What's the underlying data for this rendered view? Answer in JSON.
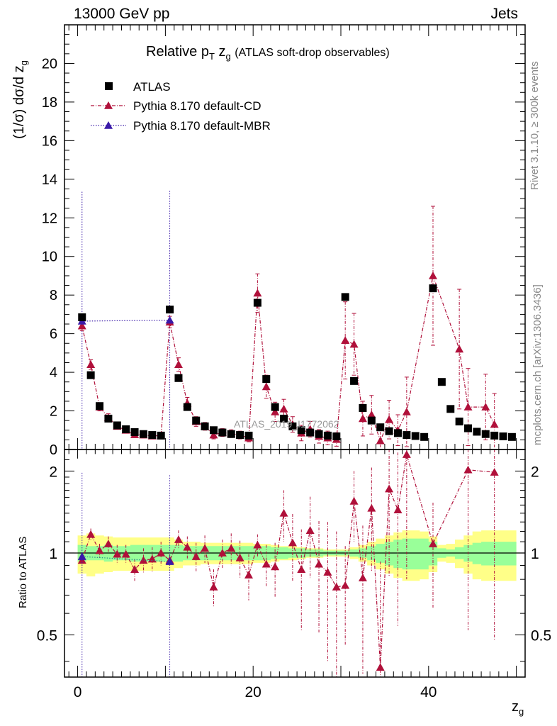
{
  "header": {
    "left": "13000 GeV pp",
    "right": "Jets"
  },
  "side": {
    "rivet": "Rivet 3.1.10, ≥ 300k events",
    "mcplots": "mcplots.cern.ch [arXiv:1306.3436]"
  },
  "colors": {
    "data": "#000000",
    "cd": "#b0103a",
    "mbr": "#3a1aa8",
    "band_inner": "#99ff99",
    "band_outer": "#ffff88"
  },
  "chart_data": [
    {
      "type": "scatter",
      "title_main": "Relative p",
      "title_sub": "T",
      "title_var": "z",
      "title_var_sub": "g",
      "title_rest": "(ATLAS soft-drop observables)",
      "ylabel": "(1/σ) dσ/d z",
      "ylabel_sub": "g",
      "ylim": [
        0,
        22
      ],
      "yticks": [
        0,
        2,
        4,
        6,
        8,
        10,
        12,
        14,
        16,
        18,
        20
      ],
      "watermark": "ATLAS_2019_I1772062",
      "legend": [
        "ATLAS",
        "Pythia 8.170 default-CD",
        "Pythia 8.170 default-MBR"
      ],
      "legend_position": "top-left",
      "x": [
        0.5,
        1.5,
        2.5,
        3.5,
        4.5,
        5.5,
        6.5,
        7.5,
        8.5,
        9.5,
        10.5,
        11.5,
        12.5,
        13.5,
        14.5,
        15.5,
        16.5,
        17.5,
        18.5,
        19.5,
        20.5,
        21.5,
        22.5,
        23.5,
        24.5,
        25.5,
        26.5,
        27.5,
        28.5,
        29.5,
        30.5,
        31.5,
        32.5,
        33.5,
        34.5,
        35.5,
        36.5,
        37.5,
        38.5,
        39.5,
        40.5,
        41.5,
        42.5,
        43.5,
        44.5,
        45.5,
        46.5,
        47.5,
        48.5,
        49.5
      ],
      "series": [
        {
          "name": "ATLAS",
          "values": [
            6.85,
            3.85,
            2.25,
            1.6,
            1.25,
            1.05,
            0.9,
            0.8,
            0.75,
            0.72,
            7.25,
            3.7,
            2.2,
            1.5,
            1.2,
            1.0,
            0.88,
            0.8,
            0.75,
            0.72,
            7.6,
            3.65,
            2.2,
            1.6,
            1.2,
            1.0,
            0.88,
            0.8,
            0.72,
            0.68,
            7.9,
            3.55,
            2.15,
            1.5,
            1.15,
            0.95,
            0.85,
            0.75,
            0.7,
            0.65,
            8.35,
            3.5,
            2.1,
            1.45,
            1.1,
            0.92,
            0.8,
            0.72,
            0.68,
            0.65
          ]
        },
        {
          "name": "Pythia 8.170 default-CD",
          "x": [
            0.5,
            1.5,
            2.5,
            3.5,
            4.5,
            5.5,
            6.5,
            7.5,
            8.5,
            9.5,
            10.5,
            11.5,
            12.5,
            13.5,
            14.5,
            15.5,
            16.5,
            17.5,
            18.5,
            19.5,
            20.5,
            21.5,
            22.5,
            23.5,
            24.5,
            25.5,
            26.5,
            27.5,
            28.5,
            29.5,
            30.5,
            31.5,
            32.5,
            33.5,
            34.5,
            35.5,
            36.5,
            37.5,
            40.5,
            43.5,
            44.5,
            46.5,
            47.5
          ],
          "values": [
            6.4,
            4.4,
            2.2,
            1.65,
            1.2,
            1.0,
            0.77,
            0.75,
            0.7,
            0.72,
            6.6,
            4.4,
            2.4,
            1.45,
            1.2,
            0.75,
            0.88,
            0.82,
            0.75,
            0.6,
            8.1,
            3.25,
            1.95,
            2.1,
            1.3,
            0.85,
            1.05,
            0.68,
            0.6,
            0.52,
            5.65,
            5.45,
            1.6,
            1.8,
            0.45,
            1.55,
            1.0,
            1.95,
            9.0,
            5.2,
            2.2,
            2.2,
            1.3
          ],
          "errors": [
            0.25,
            0.25,
            0.2,
            0.2,
            0.15,
            0.15,
            0.15,
            0.15,
            0.15,
            0.15,
            0.3,
            0.35,
            0.3,
            0.25,
            0.2,
            0.2,
            0.2,
            0.2,
            0.2,
            0.2,
            1.0,
            0.6,
            0.5,
            0.5,
            0.4,
            0.4,
            0.4,
            0.35,
            0.35,
            0.35,
            2.0,
            1.6,
            0.9,
            1.0,
            0.8,
            1.0,
            0.8,
            1.8,
            3.6,
            3.1,
            2.0,
            1.7,
            1.6
          ]
        },
        {
          "name": "Pythia 8.170 default-MBR",
          "x": [
            0.5,
            10.5
          ],
          "values": [
            6.65,
            6.7
          ],
          "errors": [
            6.7,
            6.7
          ]
        }
      ]
    },
    {
      "type": "scatter",
      "ylabel": "Ratio to ATLAS",
      "xlabel": "z",
      "xlabel_sub": "g",
      "xlim": [
        -1.5,
        51
      ],
      "xticks": [
        0,
        20,
        40
      ],
      "ylim_log": [
        0.35,
        2.4
      ],
      "yticks": [
        0.5,
        1,
        2
      ],
      "reference_line": 1,
      "band_inner_halfwidth": [
        0.07,
        0.06,
        0.06,
        0.07,
        0.06,
        0.06,
        0.07,
        0.07,
        0.07,
        0.07,
        0.07,
        0.07,
        0.06,
        0.06,
        0.06,
        0.06,
        0.06,
        0.06,
        0.06,
        0.06,
        0.06,
        0.06,
        0.05,
        0.05,
        0.04,
        0.04,
        0.03,
        0.03,
        0.02,
        0.02,
        0.02,
        0.03,
        0.04,
        0.06,
        0.08,
        0.1,
        0.12,
        0.13,
        0.13,
        0.13,
        0.1,
        0.04,
        0.03,
        0.05,
        0.07,
        0.09,
        0.1,
        0.1,
        0.1,
        0.1
      ],
      "band_outer_halfwidth": [
        0.16,
        0.18,
        0.16,
        0.15,
        0.14,
        0.14,
        0.14,
        0.14,
        0.14,
        0.14,
        0.14,
        0.12,
        0.1,
        0.1,
        0.09,
        0.09,
        0.09,
        0.09,
        0.09,
        0.09,
        0.08,
        0.08,
        0.07,
        0.06,
        0.06,
        0.05,
        0.04,
        0.04,
        0.03,
        0.03,
        0.03,
        0.05,
        0.07,
        0.1,
        0.13,
        0.16,
        0.19,
        0.21,
        0.21,
        0.2,
        0.15,
        0.07,
        0.08,
        0.12,
        0.16,
        0.2,
        0.21,
        0.21,
        0.21,
        0.21
      ],
      "series": [
        {
          "name": "Pythia 8.170 default-CD",
          "x": [
            0.5,
            1.5,
            2.5,
            3.5,
            4.5,
            5.5,
            6.5,
            7.5,
            8.5,
            9.5,
            10.5,
            11.5,
            12.5,
            13.5,
            14.5,
            15.5,
            16.5,
            17.5,
            18.5,
            19.5,
            20.5,
            21.5,
            22.5,
            23.5,
            24.5,
            25.5,
            26.5,
            27.5,
            28.5,
            29.5,
            30.5,
            31.5,
            32.5,
            33.5,
            34.5,
            35.5,
            36.5,
            37.5,
            40.5,
            44.5,
            47.5
          ],
          "values": [
            0.94,
            1.17,
            1.02,
            1.08,
            0.99,
            0.99,
            0.87,
            0.94,
            0.95,
            1.0,
            0.94,
            1.12,
            1.05,
            0.97,
            1.04,
            0.75,
            1.0,
            1.04,
            0.96,
            0.83,
            1.07,
            0.91,
            0.89,
            1.4,
            1.09,
            0.87,
            1.21,
            0.91,
            0.85,
            0.75,
            0.76,
            1.55,
            0.81,
            1.46,
            0.38,
            1.72,
            1.44,
            2.3,
            1.08,
            2.02,
            1.98
          ],
          "errors": [
            0.05,
            0.06,
            0.06,
            0.07,
            0.08,
            0.08,
            0.08,
            0.1,
            0.1,
            0.1,
            0.05,
            0.09,
            0.1,
            0.12,
            0.12,
            0.12,
            0.12,
            0.14,
            0.15,
            0.16,
            0.1,
            0.16,
            0.2,
            0.3,
            0.3,
            0.35,
            0.4,
            0.4,
            0.45,
            0.45,
            0.3,
            0.45,
            0.45,
            0.6,
            0.55,
            0.9,
            0.9,
            1.5,
            0.45,
            1.5,
            1.5
          ]
        },
        {
          "name": "Pythia 8.170 default-MBR",
          "x": [
            0.5,
            10.5
          ],
          "values": [
            0.97,
            0.93
          ],
          "errors": [
            1.0,
            1.0
          ]
        }
      ]
    }
  ]
}
